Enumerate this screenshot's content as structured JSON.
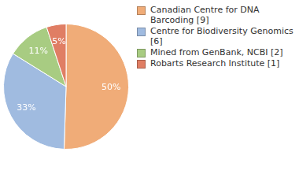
{
  "chart_data": {
    "type": "pie",
    "categories": [
      "Canadian Centre for DNA Barcoding [9]",
      "Centre for Biodiversity Genomics [6]",
      "Mined from GenBank, NCBI [2]",
      "Robarts Research Institute [1]"
    ],
    "values": [
      50,
      33,
      11,
      5
    ],
    "value_labels": [
      "50%",
      "33%",
      "11%",
      "5%"
    ],
    "colors": [
      "#f0ac78",
      "#a0bbe0",
      "#a8cc82",
      "#e07e64"
    ],
    "data_labels": true,
    "legend": "right"
  }
}
